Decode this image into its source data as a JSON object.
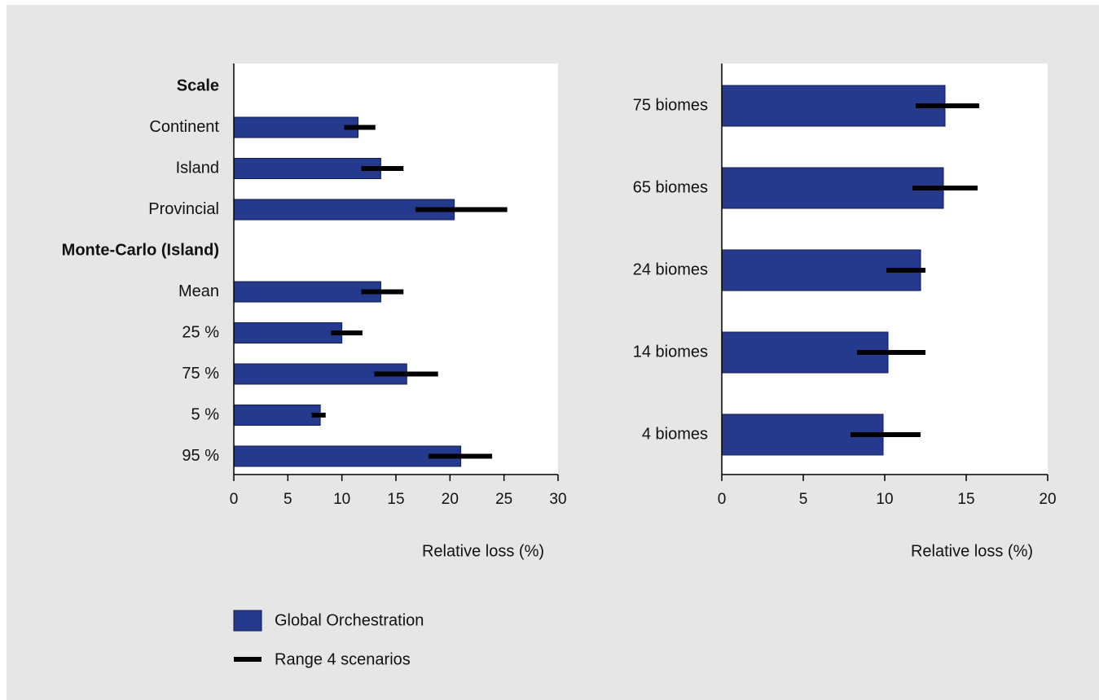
{
  "colors": {
    "bar_fill": "#253a8c",
    "bar_stroke": "#101c55",
    "error_bar": "#000000",
    "plot_bg": "#ffffff",
    "panel_bg": "#e6e6e6"
  },
  "chart_data": [
    {
      "type": "bar",
      "orientation": "horizontal",
      "xlabel": "Relative loss (%)",
      "xlim": [
        0,
        30
      ],
      "xticks": [
        0,
        5,
        10,
        15,
        20,
        25,
        30
      ],
      "groups": [
        {
          "name": "Scale",
          "categories": [
            "Continent",
            "Island",
            "Provincial"
          ],
          "values": [
            11.5,
            13.6,
            20.4
          ],
          "range_low": [
            10.2,
            11.8,
            16.8
          ],
          "range_high": [
            13.1,
            15.7,
            25.3
          ]
        },
        {
          "name": "Monte-Carlo (Island)",
          "categories": [
            "Mean",
            "25 %",
            "75 %",
            "5 %",
            "95 %"
          ],
          "values": [
            13.6,
            10.0,
            16.0,
            8.0,
            21.0
          ],
          "range_low": [
            11.8,
            9.0,
            13.0,
            7.2,
            18.0
          ],
          "range_high": [
            15.7,
            11.9,
            18.9,
            8.5,
            23.9
          ]
        }
      ]
    },
    {
      "type": "bar",
      "orientation": "horizontal",
      "xlabel": "Relative loss (%)",
      "xlim": [
        0,
        20
      ],
      "xticks": [
        0,
        5,
        10,
        15,
        20
      ],
      "categories": [
        "75 biomes",
        "65 biomes",
        "24 biomes",
        "14 biomes",
        "4 biomes"
      ],
      "values": [
        13.7,
        13.6,
        12.2,
        10.2,
        9.9
      ],
      "range_low": [
        11.9,
        11.7,
        10.1,
        8.3,
        7.9
      ],
      "range_high": [
        15.8,
        15.7,
        12.5,
        12.5,
        12.2
      ]
    }
  ],
  "legend": {
    "bar_label": "Global Orchestration",
    "range_label": "Range 4 scenarios"
  }
}
